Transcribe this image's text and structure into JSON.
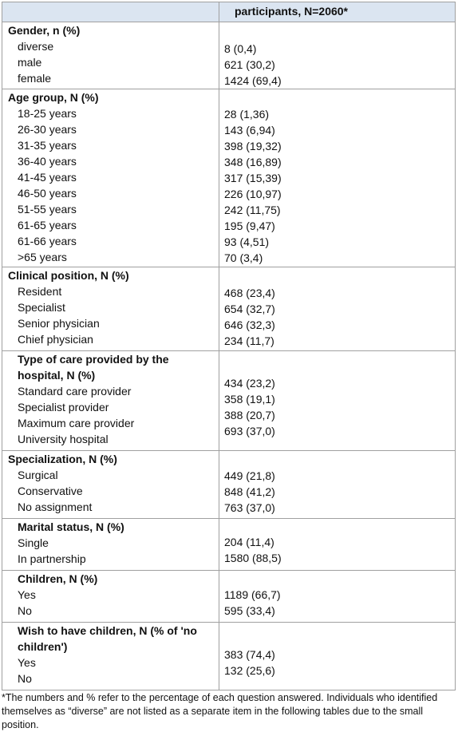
{
  "header": {
    "column2": "participants, N=2060*"
  },
  "sections": [
    {
      "title": "Gender, n (%)",
      "rows": [
        {
          "label": "diverse",
          "value": "8 (0,4)"
        },
        {
          "label": "male",
          "value": "621 (30,2)"
        },
        {
          "label": "female",
          "value": "1424 (69,4)"
        }
      ]
    },
    {
      "title": "Age group, N (%)",
      "rows": [
        {
          "label": "18-25 years",
          "value": "28 (1,36)"
        },
        {
          "label": "26-30 years",
          "value": "143 (6,94)"
        },
        {
          "label": "31-35 years",
          "value": "398 (19,32)"
        },
        {
          "label": "36-40 years",
          "value": "348 (16,89)"
        },
        {
          "label": "41-45 years",
          "value": "317 (15,39)"
        },
        {
          "label": "46-50 years",
          "value": "226 (10,97)"
        },
        {
          "label": "51-55 years",
          "value": "242 (11,75)"
        },
        {
          "label": "61-65  years",
          "value": "195 (9,47)"
        },
        {
          "label": "61-66  years",
          "value": "93 (4,51)"
        },
        {
          "label": ">65  years",
          "value": "70 (3,4)"
        }
      ]
    },
    {
      "title": "Clinical position, N (%)",
      "rows": [
        {
          "label": "Resident",
          "value": "468 (23,4)"
        },
        {
          "label": "Specialist",
          "value": "654 (32,7)"
        },
        {
          "label": "Senior physician",
          "value": "646 (32,3)"
        },
        {
          "label": "Chief physician",
          "value": "234 (11,7)"
        }
      ]
    },
    {
      "title": "Type of care provided by the hospital, N (%)",
      "rows": [
        {
          "label": "Standard care provider",
          "value": "434 (23,2)"
        },
        {
          "label": "Specialist provider",
          "value": "358 (19,1)"
        },
        {
          "label": "Maximum care provider",
          "value": "388 (20,7)"
        },
        {
          "label": "University hospital",
          "value": "693 (37,0)"
        }
      ]
    },
    {
      "title": "Specialization, N (%)",
      "rows": [
        {
          "label": "Surgical",
          "value": "449 (21,8)"
        },
        {
          "label": "Conservative",
          "value": "848 (41,2)"
        },
        {
          "label": "No assignment",
          "value": "763 (37,0)"
        }
      ]
    },
    {
      "title": "Marital status, N (%)",
      "rows": [
        {
          "label": "Single",
          "value": "204 (11,4)"
        },
        {
          "label": "In partnership",
          "value": "1580 (88,5)"
        }
      ]
    },
    {
      "title": "Children, N (%)",
      "rows": [
        {
          "label": "Yes",
          "value": "1189 (66,7)"
        },
        {
          "label": "No",
          "value": "595 (33,4)"
        }
      ]
    },
    {
      "title": "Wish to have children, N (% of 'no children')",
      "rows": [
        {
          "label": "Yes",
          "value": "383 (74,4)"
        },
        {
          "label": "No",
          "value": "132 (25,6)"
        }
      ]
    }
  ],
  "footnote": "*The numbers and % refer to the percentage of each question answered. Individuals who identified themselves as “diverse” are not listed as a separate item in the following tables due to the small position."
}
